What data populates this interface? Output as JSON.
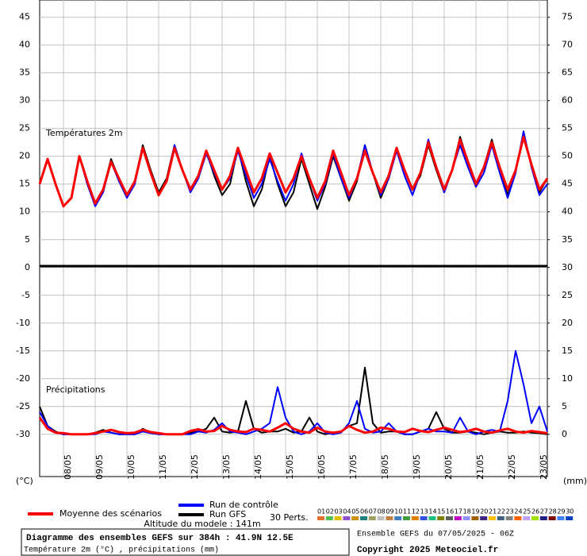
{
  "chart_data": {
    "type": "line",
    "annotations": [
      "Températures 2m",
      "Précipitations"
    ],
    "x": [
      0,
      6,
      12,
      18,
      24,
      30,
      36,
      42,
      48,
      54,
      60,
      66,
      72,
      78,
      84,
      90,
      96,
      102,
      108,
      114,
      120,
      126,
      132,
      138,
      144,
      150,
      156,
      162,
      168,
      174,
      180,
      186,
      192,
      198,
      204,
      210,
      216,
      222,
      228,
      234,
      240,
      246,
      252,
      258,
      264,
      270,
      276,
      282,
      288,
      294,
      300,
      306,
      312,
      318,
      324,
      330,
      336,
      342,
      348,
      354,
      360,
      366,
      372,
      378,
      384
    ],
    "xlim": [
      0,
      384
    ],
    "xticks": [
      {
        "value": 18,
        "label": "08/05"
      },
      {
        "value": 42,
        "label": "09/05"
      },
      {
        "value": 66,
        "label": "10/05"
      },
      {
        "value": 90,
        "label": "11/05"
      },
      {
        "value": 114,
        "label": "12/05"
      },
      {
        "value": 138,
        "label": "13/05"
      },
      {
        "value": 162,
        "label": "14/05"
      },
      {
        "value": 186,
        "label": "15/05"
      },
      {
        "value": 210,
        "label": "16/05"
      },
      {
        "value": 234,
        "label": "17/05"
      },
      {
        "value": 258,
        "label": "18/05"
      },
      {
        "value": 282,
        "label": "19/05"
      },
      {
        "value": 306,
        "label": "20/05"
      },
      {
        "value": 330,
        "label": "21/05"
      },
      {
        "value": 354,
        "label": "22/05"
      },
      {
        "value": 378,
        "label": "23/05"
      }
    ],
    "ylim": [
      -37.6,
      48.1
    ],
    "yticks": [
      45,
      40,
      35,
      30,
      25,
      20,
      15,
      10,
      5,
      0,
      -5,
      -10,
      -15,
      -20,
      -25,
      -30
    ],
    "y2lim": [
      -7.6,
      78.1
    ],
    "y2ticks": [
      75,
      70,
      65,
      60,
      55,
      50,
      45,
      40,
      35,
      30,
      25,
      20,
      15,
      10,
      5,
      0
    ],
    "ylabel": "(°C)",
    "y2label": "(mm)",
    "grid": true,
    "series": [
      {
        "name": "Moyenne des scénarios",
        "color": "#ff0000",
        "width": 3,
        "values": [
          15,
          19.5,
          15,
          11,
          12.5,
          20,
          15.5,
          11.5,
          14,
          19,
          16,
          13,
          15.5,
          21.5,
          17,
          13,
          15.5,
          21.5,
          17.5,
          14,
          16.5,
          21,
          17.5,
          14,
          16.5,
          21.5,
          17.5,
          13.5,
          16,
          20.5,
          17,
          13.5,
          16,
          20,
          16,
          12.5,
          15.5,
          21,
          17,
          13,
          16,
          21,
          17,
          13.5,
          16.5,
          21.5,
          17.5,
          14,
          17,
          22.5,
          18,
          14,
          17.5,
          23,
          19,
          15,
          18,
          22.5,
          18,
          14,
          17.5,
          23.5,
          18.5,
          14,
          16
        ]
      },
      {
        "name": "Run de contrôle",
        "color": "#0000ff",
        "width": 2,
        "values": [
          15,
          19.5,
          15,
          11,
          12.5,
          20,
          15,
          11,
          13.5,
          19,
          15.5,
          12.5,
          15,
          21.5,
          17,
          13,
          15.5,
          22,
          17.5,
          13.5,
          16,
          20.5,
          17,
          14,
          16,
          21,
          16.5,
          12.5,
          15,
          19.5,
          15.5,
          12,
          15,
          20.5,
          16,
          12,
          15,
          20.5,
          16,
          12.5,
          16,
          22,
          17,
          13,
          16,
          21,
          16.5,
          13,
          17,
          23,
          18,
          13.5,
          17.5,
          22,
          18,
          14.5,
          17,
          22,
          17,
          12.5,
          17,
          24.5,
          18,
          13,
          15
        ]
      },
      {
        "name": "Run GFS",
        "color": "#000000",
        "width": 2,
        "values": [
          15,
          19.5,
          15,
          11,
          12.5,
          20,
          15.5,
          11.5,
          14,
          19.5,
          16,
          13,
          15.5,
          22,
          17.5,
          13.5,
          16,
          22,
          17.5,
          14,
          16,
          21,
          16.5,
          13,
          15,
          21.5,
          15.5,
          11,
          14,
          20,
          15,
          11,
          13.5,
          19.5,
          15,
          10.5,
          14.5,
          20,
          16,
          12,
          15.5,
          22,
          17,
          12.5,
          16,
          21.5,
          17.5,
          14,
          16.5,
          22,
          17.5,
          13.5,
          17.5,
          23.5,
          19,
          15,
          18,
          23,
          18,
          13,
          17.5,
          24,
          18.5,
          13.5,
          16
        ]
      },
      {
        "color": "#ff0000",
        "width": 3,
        "axis": "y2",
        "values": [
          3,
          1,
          0.3,
          0.2,
          0,
          0,
          0,
          0.2,
          0.5,
          0.8,
          0.4,
          0.2,
          0.3,
          0.8,
          0.4,
          0.2,
          0,
          0,
          0,
          0.6,
          0.9,
          0.5,
          0.6,
          1.5,
          0.8,
          0.5,
          0.4,
          1,
          0.8,
          0.5,
          1.2,
          2,
          1,
          0.5,
          0.3,
          1.2,
          0.5,
          0.3,
          0.5,
          1.5,
          0.8,
          0.3,
          0.5,
          1.2,
          1,
          0.5,
          0.4,
          1,
          0.6,
          0.4,
          0.8,
          1.2,
          0.8,
          0.4,
          0.6,
          1,
          0.5,
          0.3,
          0.7,
          1,
          0.5,
          0.3,
          0.6,
          0.4,
          0.2
        ]
      },
      {
        "color": "#0000ff",
        "width": 2,
        "axis": "y2",
        "values": [
          4,
          1.5,
          0.3,
          0,
          0,
          0,
          0,
          0,
          0.5,
          0.3,
          0,
          0,
          0,
          0.5,
          0.2,
          0,
          0,
          0,
          0,
          0,
          0.5,
          0.3,
          0.8,
          2,
          0.5,
          0.3,
          0,
          0.5,
          1,
          2,
          8.5,
          3,
          0.5,
          0,
          0.5,
          2,
          0.3,
          0,
          0.3,
          2,
          6,
          1,
          0.3,
          0.5,
          2,
          0.5,
          0,
          0,
          0.5,
          1,
          0.5,
          0.5,
          0.3,
          3,
          0.5,
          0,
          0.5,
          0.8,
          0.5,
          6,
          15,
          9,
          2,
          5,
          0.5
        ]
      },
      {
        "color": "#000000",
        "width": 2,
        "axis": "y2",
        "values": [
          5,
          1.5,
          0.5,
          0,
          0,
          0,
          0,
          0.3,
          0.8,
          0.3,
          0,
          0,
          0,
          1,
          0.3,
          0,
          0,
          0,
          0,
          0.3,
          0.5,
          1,
          3,
          0.5,
          0.3,
          0.5,
          6,
          1,
          0.3,
          0.5,
          0.5,
          1,
          0.3,
          0.5,
          3,
          0.5,
          0,
          0.3,
          0.5,
          1.5,
          2,
          12,
          2,
          0.3,
          0.5,
          0.5,
          0,
          0,
          0.5,
          1,
          4,
          1,
          0.3,
          0.3,
          0.5,
          0.3,
          0,
          0.3,
          0.5,
          0.3,
          0.3,
          0.5,
          0.3,
          0.2,
          0
        ]
      }
    ],
    "members_label": "30 Perts.",
    "members": [
      {
        "name": "01",
        "color": "#e07030"
      },
      {
        "name": "02",
        "color": "#50c050"
      },
      {
        "name": "03",
        "color": "#e0c000"
      },
      {
        "name": "04",
        "color": "#9050d0"
      },
      {
        "name": "05",
        "color": "#d09000"
      },
      {
        "name": "06",
        "color": "#208080"
      },
      {
        "name": "07",
        "color": "#a0a060"
      },
      {
        "name": "08",
        "color": "#c0c0c0"
      },
      {
        "name": "09",
        "color": "#c08040"
      },
      {
        "name": "10",
        "color": "#4080c0"
      },
      {
        "name": "11",
        "color": "#40a040"
      },
      {
        "name": "12",
        "color": "#e08000"
      },
      {
        "name": "13",
        "color": "#3050e0"
      },
      {
        "name": "14",
        "color": "#20c080"
      },
      {
        "name": "15",
        "color": "#808000"
      },
      {
        "name": "16",
        "color": "#606060"
      },
      {
        "name": "17",
        "color": "#c000c0"
      },
      {
        "name": "18",
        "color": "#9090ff"
      },
      {
        "name": "19",
        "color": "#a06000"
      },
      {
        "name": "20",
        "color": "#402080"
      },
      {
        "name": "21",
        "color": "#ffc000"
      },
      {
        "name": "22",
        "color": "#406080"
      },
      {
        "name": "23",
        "color": "#808080"
      },
      {
        "name": "24",
        "color": "#ff6000"
      },
      {
        "name": "25",
        "color": "#c0a0ff"
      },
      {
        "name": "26",
        "color": "#a0e000"
      },
      {
        "name": "27",
        "color": "#202080"
      },
      {
        "name": "28",
        "color": "#800000"
      },
      {
        "name": "29",
        "color": "#4080ff"
      },
      {
        "name": "30",
        "color": "#0040c0"
      }
    ],
    "altitude": "Altitude du modele : 141m",
    "footer": {
      "title": "Diagramme des ensembles GEFS sur 384h : 41.9N 12.5E",
      "subtitle": "Température 2m (°C) , précipitations (mm)",
      "run": "Ensemble GEFS du 07/05/2025 - 06Z",
      "copyright": "Copyright 2025 Meteociel.fr"
    }
  }
}
